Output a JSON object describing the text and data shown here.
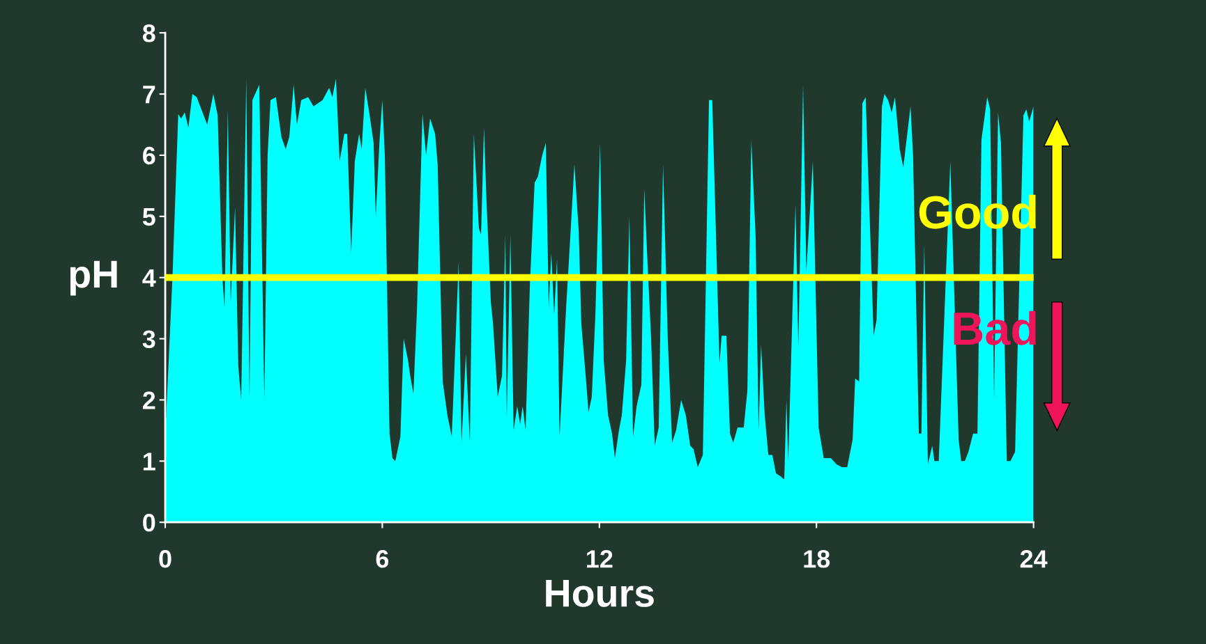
{
  "chart_data": {
    "type": "area",
    "xlabel": "Hours",
    "ylabel": "pH",
    "x": [
      0,
      0.2,
      0.36,
      0.44,
      0.54,
      0.64,
      0.75,
      0.87,
      1.16,
      1.33,
      1.45,
      1.58,
      1.64,
      1.73,
      1.81,
      1.93,
      2.02,
      2.1,
      2.24,
      2.33,
      2.41,
      2.6,
      2.74,
      2.83,
      2.91,
      3.06,
      3.21,
      3.33,
      3.43,
      3.55,
      3.64,
      3.76,
      3.95,
      4.1,
      4.35,
      4.53,
      4.62,
      4.72,
      4.82,
      4.95,
      5.03,
      5.14,
      5.24,
      5.36,
      5.43,
      5.53,
      5.65,
      5.76,
      5.82,
      5.92,
      6.0,
      6.07,
      6.2,
      6.28,
      6.36,
      6.5,
      6.59,
      6.71,
      6.77,
      6.86,
      6.96,
      7.11,
      7.21,
      7.32,
      7.46,
      7.53,
      7.67,
      7.8,
      7.92,
      8.11,
      8.19,
      8.31,
      8.42,
      8.53,
      8.67,
      8.73,
      8.81,
      8.88,
      9.0,
      9.06,
      9.19,
      9.31,
      9.4,
      9.44,
      9.54,
      9.63,
      9.73,
      9.81,
      9.88,
      9.96,
      10.08,
      10.21,
      10.3,
      10.42,
      10.52,
      10.6,
      10.67,
      10.75,
      10.83,
      10.9,
      11.08,
      11.18,
      11.31,
      11.43,
      11.5,
      11.62,
      11.7,
      11.79,
      11.89,
      12.02,
      12.12,
      12.24,
      12.35,
      12.43,
      12.54,
      12.62,
      12.74,
      12.83,
      12.93,
      13.03,
      13.16,
      13.24,
      13.33,
      13.43,
      13.53,
      13.64,
      13.76,
      13.89,
      14.01,
      14.12,
      14.26,
      14.39,
      14.51,
      14.6,
      14.72,
      14.86,
      15.03,
      15.12,
      15.32,
      15.38,
      15.51,
      15.61,
      15.7,
      15.82,
      15.99,
      16.09,
      16.2,
      16.32,
      16.4,
      16.47,
      16.57,
      16.67,
      16.78,
      16.88,
      17.01,
      17.11,
      17.17,
      17.22,
      17.42,
      17.5,
      17.63,
      17.72,
      17.9,
      18.06,
      18.2,
      18.4,
      18.55,
      18.7,
      18.85,
      19.0,
      19.07,
      19.18,
      19.27,
      19.36,
      19.58,
      19.66,
      19.81,
      19.88,
      19.98,
      20.08,
      20.17,
      20.3,
      20.4,
      20.6,
      20.67,
      20.83,
      20.9,
      20.98,
      21.08,
      21.2,
      21.26,
      21.38,
      21.7,
      21.93,
      22.0,
      22.1,
      22.2,
      22.33,
      22.45,
      22.56,
      22.72,
      22.8,
      22.91,
      23.02,
      23.1,
      23.26,
      23.36,
      23.49,
      23.72,
      23.8,
      23.88,
      24
    ],
    "series": [
      {
        "color": "#00ffff",
        "values": [
          1.4,
          4.0,
          6.67,
          6.6,
          6.7,
          6.45,
          7.0,
          6.95,
          6.5,
          7.0,
          6.65,
          4.0,
          3.5,
          6.75,
          3.6,
          5.15,
          2.55,
          2.0,
          7.25,
          2.0,
          6.9,
          7.15,
          2.0,
          6.0,
          6.9,
          6.95,
          6.3,
          6.1,
          6.3,
          7.15,
          6.5,
          6.9,
          6.95,
          6.8,
          6.9,
          7.1,
          6.95,
          7.25,
          5.9,
          6.35,
          6.35,
          4.4,
          5.9,
          6.35,
          6.1,
          7.1,
          6.65,
          6.2,
          5.0,
          6.2,
          6.9,
          6.0,
          1.45,
          1.05,
          1.0,
          1.4,
          3.0,
          2.65,
          2.4,
          2.1,
          3.5,
          6.67,
          6.0,
          6.6,
          6.35,
          5.85,
          2.3,
          1.75,
          1.4,
          4.25,
          1.3,
          2.75,
          1.3,
          6.35,
          4.8,
          4.7,
          6.45,
          5.25,
          3.6,
          3.25,
          2.05,
          2.4,
          4.7,
          1.7,
          4.7,
          1.5,
          1.9,
          1.6,
          1.9,
          1.5,
          3.9,
          5.55,
          5.65,
          6.0,
          6.2,
          3.5,
          4.4,
          3.4,
          4.3,
          1.4,
          3.5,
          4.5,
          5.85,
          4.75,
          3.25,
          2.4,
          1.8,
          2.05,
          3.4,
          6.2,
          2.65,
          1.75,
          1.45,
          1.05,
          1.5,
          1.75,
          2.65,
          5.0,
          1.4,
          1.9,
          2.25,
          5.45,
          4.25,
          3.0,
          1.25,
          1.55,
          5.85,
          3.0,
          1.3,
          1.5,
          2.0,
          1.75,
          1.25,
          1.2,
          0.9,
          1.1,
          6.9,
          6.9,
          2.6,
          3.05,
          3.05,
          1.45,
          1.3,
          1.55,
          1.55,
          2.15,
          6.25,
          4.65,
          1.5,
          2.9,
          1.75,
          1.1,
          1.1,
          0.8,
          0.75,
          0.7,
          2.0,
          1.0,
          5.2,
          2.85,
          7.15,
          4.1,
          5.9,
          1.55,
          1.05,
          1.05,
          0.95,
          0.9,
          0.9,
          1.35,
          2.35,
          2.3,
          6.85,
          6.95,
          3.05,
          3.3,
          6.8,
          7.0,
          6.9,
          6.7,
          6.95,
          6.1,
          5.8,
          6.8,
          6.0,
          1.45,
          1.45,
          4.55,
          0.95,
          1.25,
          1.0,
          1.0,
          5.9,
          1.35,
          1.0,
          1.0,
          1.15,
          1.45,
          1.45,
          6.25,
          6.95,
          6.75,
          2.0,
          6.7,
          6.2,
          1.0,
          1.0,
          1.15,
          6.65,
          6.75,
          6.55,
          6.8
        ]
      }
    ],
    "xlim": [
      0,
      24
    ],
    "ylim": [
      0,
      8
    ],
    "xticks": [
      0,
      6,
      12,
      18,
      24
    ],
    "yticks": [
      0,
      1,
      2,
      3,
      4,
      5,
      6,
      7,
      8
    ],
    "ref_lines": [
      {
        "axis": "y",
        "value": 4,
        "color": "#ffff00"
      }
    ],
    "annotations": [
      "Good",
      "Bad"
    ]
  }
}
